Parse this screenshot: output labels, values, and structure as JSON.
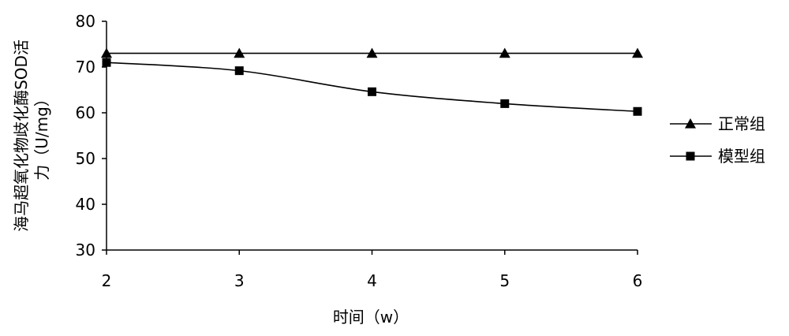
{
  "chart_data": {
    "type": "line",
    "title": "",
    "xlabel": "时间（w）",
    "ylabel_line1": "海马超氧化物歧化酶SOD活",
    "ylabel_line2": "力（U/mg）",
    "x": [
      2,
      3,
      4,
      5,
      6
    ],
    "xlim": [
      2,
      6
    ],
    "ylim": [
      30,
      80
    ],
    "yticks": [
      30,
      40,
      50,
      60,
      70,
      80
    ],
    "grid": false,
    "legend_position": "right",
    "series": [
      {
        "name": "正常组",
        "marker": "triangle",
        "color": "#000000",
        "values": [
          73,
          73,
          73,
          73,
          73
        ]
      },
      {
        "name": "模型组",
        "marker": "square",
        "color": "#000000",
        "values": [
          71,
          69.2,
          64.6,
          62,
          60.3
        ]
      }
    ]
  }
}
